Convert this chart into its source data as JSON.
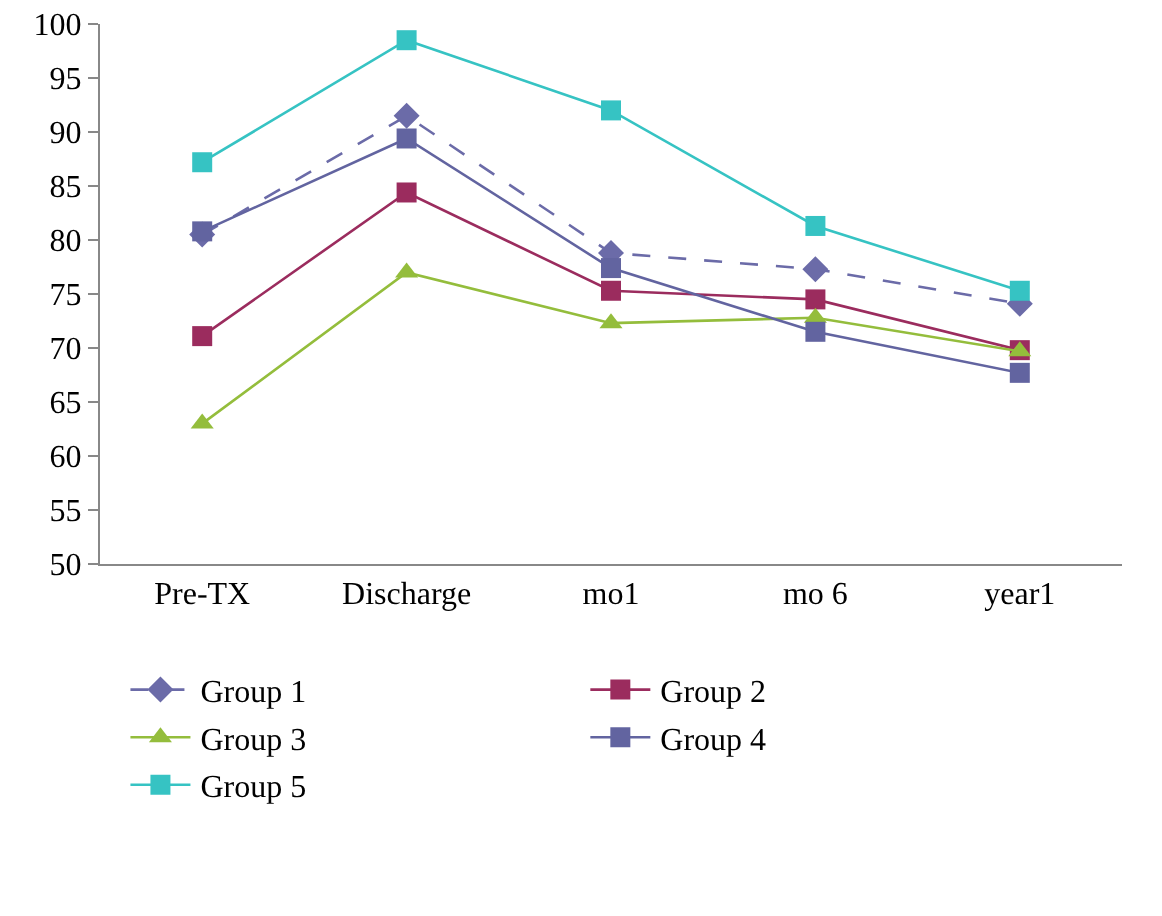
{
  "chart_data": {
    "type": "line",
    "categories": [
      "Pre-TX",
      "Discharge",
      "mo1",
      "mo 6",
      "year1"
    ],
    "series": [
      {
        "name": "Group 1",
        "color": "#6b6ba8",
        "line_style": "dashed",
        "marker": "diamond",
        "values": [
          80.5,
          91.5,
          78.8,
          77.3,
          74.1
        ]
      },
      {
        "name": "Group 2",
        "color": "#9b2c5e",
        "line_style": "solid",
        "marker": "square",
        "values": [
          71.1,
          84.4,
          75.3,
          74.5,
          69.8
        ]
      },
      {
        "name": "Group 3",
        "color": "#94bd3c",
        "line_style": "solid",
        "marker": "triangle",
        "values": [
          63,
          77,
          72.3,
          72.8,
          69.7
        ]
      },
      {
        "name": "Group 4",
        "color": "#6264a0",
        "line_style": "solid",
        "marker": "square",
        "values": [
          80.8,
          89.4,
          77.4,
          71.5,
          67.7
        ]
      },
      {
        "name": "Group 5",
        "color": "#36c3c3",
        "line_style": "solid",
        "marker": "square",
        "values": [
          87.2,
          98.5,
          92,
          81.3,
          75.3
        ]
      }
    ],
    "ylim": [
      50,
      100
    ],
    "yticks": [
      50,
      55,
      60,
      65,
      70,
      75,
      80,
      85,
      90,
      95,
      100
    ],
    "grid": false,
    "legend": "bottom"
  }
}
